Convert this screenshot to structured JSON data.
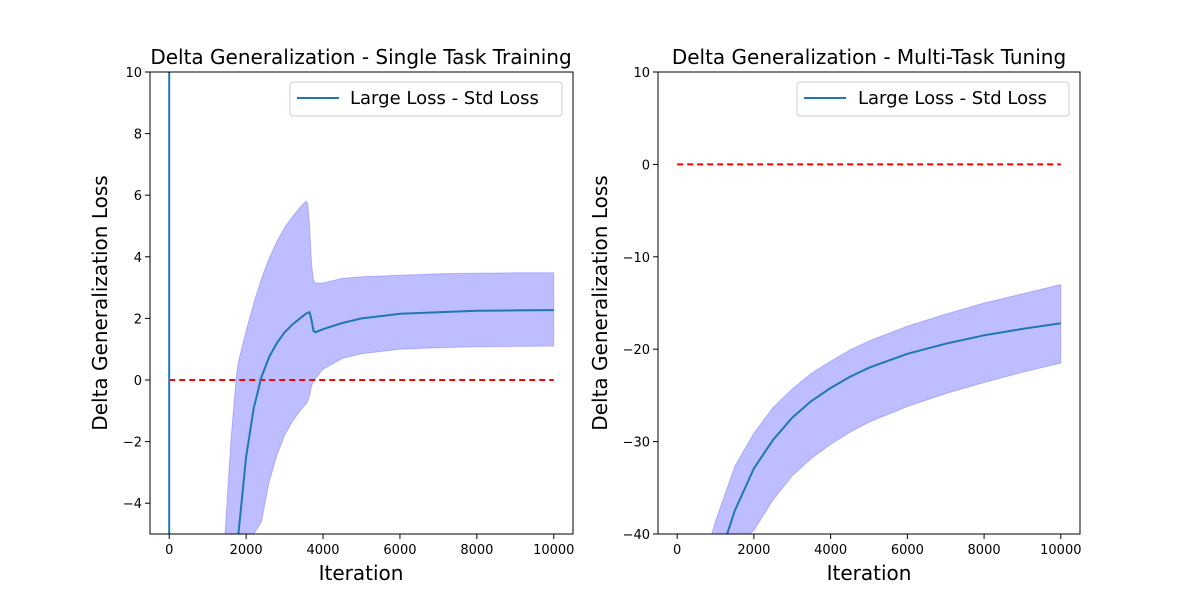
{
  "chart_data": [
    {
      "type": "line",
      "title": "Delta Generalization - Single Task Training",
      "xlabel": "Iteration",
      "ylabel": "Delta Generalization Loss",
      "xlim": [
        -500,
        10500
      ],
      "ylim": [
        -5,
        10
      ],
      "xticks": [
        0,
        2000,
        4000,
        6000,
        8000,
        10000
      ],
      "xtick_labels": [
        "0",
        "2000",
        "4000",
        "6000",
        "8000",
        "10000"
      ],
      "yticks": [
        -4,
        -2,
        0,
        2,
        4,
        6,
        8,
        10
      ],
      "ytick_labels": [
        "−4",
        "−2",
        "0",
        "2",
        "4",
        "6",
        "8",
        "10"
      ],
      "legend": {
        "label": "Large Loss - Std Loss",
        "location": "upper right"
      },
      "series": [
        {
          "name": "Large Loss - Std Loss",
          "color": "#1f77b4",
          "x": [
            0,
            0
          ],
          "y": [
            -5,
            10
          ]
        },
        {
          "name": "Large Loss - Std Loss",
          "color": "#1f77b4",
          "x": [
            1800,
            2000,
            2200,
            2400,
            2600,
            2800,
            3000,
            3200,
            3400,
            3550,
            3650,
            3700,
            3750,
            3800,
            4000,
            4500,
            5000,
            6000,
            7000,
            8000,
            9000,
            10000
          ],
          "y": [
            -5,
            -2.5,
            -0.9,
            0.1,
            0.75,
            1.2,
            1.55,
            1.8,
            2.0,
            2.15,
            2.2,
            1.95,
            1.6,
            1.55,
            1.65,
            1.85,
            2.0,
            2.15,
            2.2,
            2.25,
            2.26,
            2.27
          ]
        }
      ],
      "band": {
        "color": "#0000ff",
        "opacity": 0.26,
        "x": [
          1450,
          1600,
          1750,
          1800,
          2000,
          2200,
          2400,
          2600,
          2800,
          3000,
          3200,
          3400,
          3550,
          3600,
          3650,
          3700,
          3750,
          3800,
          4000,
          4500,
          5000,
          6000,
          7000,
          8000,
          9000,
          10000
        ],
        "upper": [
          -5,
          -2.0,
          0.2,
          0.6,
          1.6,
          2.5,
          3.3,
          3.95,
          4.5,
          4.95,
          5.3,
          5.6,
          5.8,
          5.75,
          5.0,
          3.8,
          3.25,
          3.15,
          3.15,
          3.3,
          3.35,
          3.4,
          3.45,
          3.47,
          3.48,
          3.48
        ],
        "lower": [
          -5,
          -5,
          -5,
          -5,
          -5,
          -5,
          -4.6,
          -3.3,
          -2.45,
          -1.8,
          -1.35,
          -1.0,
          -0.8,
          -0.7,
          -0.5,
          -0.2,
          -0.05,
          0.05,
          0.35,
          0.7,
          0.85,
          1.0,
          1.05,
          1.08,
          1.09,
          1.1
        ]
      },
      "band_lower_start_x": 2250,
      "reference_line": {
        "y": 0,
        "x_range": [
          0,
          10000
        ],
        "style": "dashed",
        "color": "#ff0000"
      }
    },
    {
      "type": "line",
      "title": "Delta Generalization - Multi-Task Tuning",
      "xlabel": "Iteration",
      "ylabel": "Delta Generalization Loss",
      "xlim": [
        -500,
        10500
      ],
      "ylim": [
        -40,
        10
      ],
      "xticks": [
        0,
        2000,
        4000,
        6000,
        8000,
        10000
      ],
      "xtick_labels": [
        "0",
        "2000",
        "4000",
        "6000",
        "8000",
        "10000"
      ],
      "yticks": [
        -40,
        -30,
        -20,
        -10,
        0,
        10
      ],
      "ytick_labels": [
        "−40",
        "−30",
        "−20",
        "−10",
        "0",
        "10"
      ],
      "legend": {
        "label": "Large Loss - Std Loss",
        "location": "upper right"
      },
      "series": [
        {
          "name": "Large Loss - Std Loss",
          "color": "#1f77b4",
          "x": [
            1300,
            1500,
            2000,
            2500,
            3000,
            3500,
            4000,
            4500,
            5000,
            6000,
            7000,
            8000,
            9000,
            10000
          ],
          "y": [
            -40,
            -37.5,
            -32.9,
            -29.8,
            -27.4,
            -25.6,
            -24.2,
            -23.0,
            -22.0,
            -20.5,
            -19.4,
            -18.5,
            -17.8,
            -17.2
          ]
        }
      ],
      "band": {
        "color": "#0000ff",
        "opacity": 0.26,
        "x": [
          900,
          1000,
          1500,
          1900,
          2000,
          2500,
          3000,
          3500,
          4000,
          4500,
          5000,
          6000,
          7000,
          8000,
          9000,
          10000
        ],
        "upper": [
          -40,
          -38.6,
          -32.7,
          -29.8,
          -29.1,
          -26.3,
          -24.3,
          -22.6,
          -21.3,
          -20.1,
          -19.1,
          -17.5,
          -16.2,
          -15.0,
          -14.0,
          -13.0
        ],
        "lower": [
          -40,
          -40,
          -40,
          -40,
          -39.6,
          -36.3,
          -33.7,
          -31.8,
          -30.3,
          -29.0,
          -27.9,
          -26.2,
          -24.8,
          -23.6,
          -22.5,
          -21.5
        ]
      },
      "reference_line": {
        "y": 0,
        "x_range": [
          0,
          10000
        ],
        "style": "dashed",
        "color": "#ff0000"
      }
    }
  ]
}
